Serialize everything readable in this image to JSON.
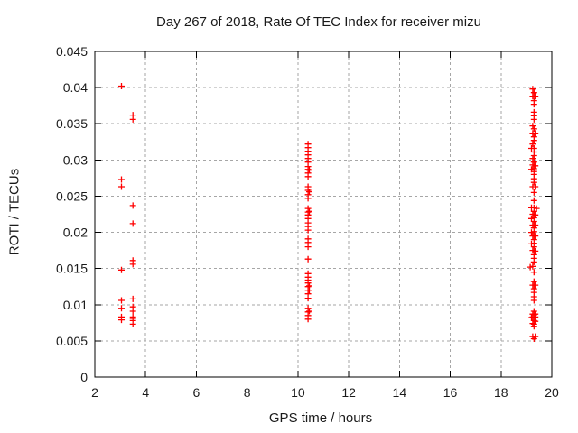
{
  "colors": {
    "marker": "#ff0000",
    "grid": "#a6a6a6",
    "axis": "#000000",
    "text": "#1a1a1a",
    "background": "#ffffff"
  },
  "chart_data": {
    "type": "scatter",
    "title": "Day 267 of 2018, Rate Of TEC Index for receiver mizu",
    "xlabel": "GPS time / hours",
    "ylabel": "ROTI / TECUs",
    "xlim": [
      2,
      20
    ],
    "ylim": [
      0,
      0.045
    ],
    "xticks": [
      2,
      4,
      6,
      8,
      10,
      12,
      14,
      16,
      18,
      20
    ],
    "xtick_labels": [
      "2",
      "4",
      "6",
      "8",
      "10",
      "12",
      "14",
      "16",
      "18",
      "20"
    ],
    "yticks": [
      0,
      0.005,
      0.01,
      0.015,
      0.02,
      0.025,
      0.03,
      0.035,
      0.04,
      0.045
    ],
    "ytick_labels": [
      "0",
      "0.005",
      "0.01",
      "0.015",
      "0.02",
      "0.025",
      "0.03",
      "0.035",
      "0.04",
      "0.045"
    ],
    "grid": true,
    "legend_position": "none",
    "marker": {
      "shape": "plus",
      "size": 7
    },
    "series": [
      {
        "name": "ROTI",
        "points": [
          [
            3.05,
            0.0402
          ],
          [
            3.05,
            0.0273
          ],
          [
            3.05,
            0.0263
          ],
          [
            3.05,
            0.0148
          ],
          [
            3.05,
            0.0106
          ],
          [
            3.05,
            0.0095
          ],
          [
            3.05,
            0.0083
          ],
          [
            3.05,
            0.0079
          ],
          [
            3.5,
            0.0362
          ],
          [
            3.5,
            0.0356
          ],
          [
            3.5,
            0.0237
          ],
          [
            3.5,
            0.0212
          ],
          [
            3.5,
            0.0161
          ],
          [
            3.5,
            0.0156
          ],
          [
            3.5,
            0.0108
          ],
          [
            3.5,
            0.0097
          ],
          [
            3.5,
            0.0091
          ],
          [
            3.5,
            0.0083
          ],
          [
            3.5,
            0.0081
          ],
          [
            3.5,
            0.0078
          ],
          [
            3.5,
            0.0073
          ],
          [
            10.4,
            0.0322
          ],
          [
            10.4,
            0.0317
          ],
          [
            10.4,
            0.0312
          ],
          [
            10.4,
            0.0307
          ],
          [
            10.4,
            0.0302
          ],
          [
            10.4,
            0.0297
          ],
          [
            10.4,
            0.0291
          ],
          [
            10.4,
            0.0287
          ],
          [
            10.45,
            0.0286
          ],
          [
            10.4,
            0.0282
          ],
          [
            10.4,
            0.0277
          ],
          [
            10.4,
            0.0263
          ],
          [
            10.4,
            0.0258
          ],
          [
            10.45,
            0.0256
          ],
          [
            10.4,
            0.0252
          ],
          [
            10.4,
            0.0247
          ],
          [
            10.4,
            0.0233
          ],
          [
            10.45,
            0.0229
          ],
          [
            10.4,
            0.0228
          ],
          [
            10.4,
            0.0224
          ],
          [
            10.4,
            0.0219
          ],
          [
            10.4,
            0.0213
          ],
          [
            10.4,
            0.0208
          ],
          [
            10.4,
            0.0203
          ],
          [
            10.4,
            0.0191
          ],
          [
            10.4,
            0.0186
          ],
          [
            10.4,
            0.018
          ],
          [
            10.4,
            0.0163
          ],
          [
            10.4,
            0.0143
          ],
          [
            10.4,
            0.0138
          ],
          [
            10.4,
            0.0134
          ],
          [
            10.4,
            0.013
          ],
          [
            10.45,
            0.0126
          ],
          [
            10.4,
            0.0125
          ],
          [
            10.4,
            0.012
          ],
          [
            10.45,
            0.012
          ],
          [
            10.4,
            0.0115
          ],
          [
            10.4,
            0.0109
          ],
          [
            10.4,
            0.0095
          ],
          [
            10.45,
            0.0091
          ],
          [
            10.4,
            0.009
          ],
          [
            10.4,
            0.0085
          ],
          [
            10.4,
            0.008
          ],
          [
            19.25,
            0.0398
          ],
          [
            19.3,
            0.0393
          ],
          [
            19.25,
            0.0388
          ],
          [
            19.35,
            0.0388
          ],
          [
            19.3,
            0.0382
          ],
          [
            19.3,
            0.0377
          ],
          [
            19.3,
            0.0366
          ],
          [
            19.3,
            0.0361
          ],
          [
            19.3,
            0.0356
          ],
          [
            19.25,
            0.0347
          ],
          [
            19.3,
            0.0343
          ],
          [
            19.25,
            0.0337
          ],
          [
            19.35,
            0.0337
          ],
          [
            19.3,
            0.0332
          ],
          [
            19.3,
            0.0327
          ],
          [
            19.25,
            0.0322
          ],
          [
            19.3,
            0.0316
          ],
          [
            19.2,
            0.0316
          ],
          [
            19.3,
            0.0311
          ],
          [
            19.3,
            0.0306
          ],
          [
            19.25,
            0.0302
          ],
          [
            19.3,
            0.0297
          ],
          [
            19.25,
            0.0293
          ],
          [
            19.35,
            0.0292
          ],
          [
            19.3,
            0.0288
          ],
          [
            19.2,
            0.0287
          ],
          [
            19.3,
            0.0284
          ],
          [
            19.3,
            0.028
          ],
          [
            19.3,
            0.0274
          ],
          [
            19.3,
            0.0269
          ],
          [
            19.25,
            0.0263
          ],
          [
            19.35,
            0.0263
          ],
          [
            19.3,
            0.0255
          ],
          [
            19.3,
            0.0244
          ],
          [
            19.2,
            0.0234
          ],
          [
            19.3,
            0.0234
          ],
          [
            19.4,
            0.0233
          ],
          [
            19.3,
            0.0229
          ],
          [
            19.25,
            0.0225
          ],
          [
            19.35,
            0.0224
          ],
          [
            19.3,
            0.022
          ],
          [
            19.2,
            0.0219
          ],
          [
            19.3,
            0.0215
          ],
          [
            19.25,
            0.021
          ],
          [
            19.35,
            0.021
          ],
          [
            19.3,
            0.0206
          ],
          [
            19.3,
            0.0201
          ],
          [
            19.2,
            0.02
          ],
          [
            19.25,
            0.0195
          ],
          [
            19.35,
            0.0195
          ],
          [
            19.3,
            0.019
          ],
          [
            19.3,
            0.0185
          ],
          [
            19.2,
            0.0184
          ],
          [
            19.3,
            0.018
          ],
          [
            19.25,
            0.0175
          ],
          [
            19.35,
            0.0174
          ],
          [
            19.3,
            0.0169
          ],
          [
            19.3,
            0.0164
          ],
          [
            19.3,
            0.0159
          ],
          [
            19.25,
            0.0153
          ],
          [
            19.15,
            0.0152
          ],
          [
            19.3,
            0.0145
          ],
          [
            19.3,
            0.0132
          ],
          [
            19.25,
            0.0127
          ],
          [
            19.35,
            0.0127
          ],
          [
            19.3,
            0.0122
          ],
          [
            19.3,
            0.0117
          ],
          [
            19.3,
            0.0111
          ],
          [
            19.3,
            0.0106
          ],
          [
            19.3,
            0.0091
          ],
          [
            19.25,
            0.0087
          ],
          [
            19.35,
            0.0087
          ],
          [
            19.3,
            0.0086
          ],
          [
            19.25,
            0.0083
          ],
          [
            19.35,
            0.0083
          ],
          [
            19.2,
            0.0082
          ],
          [
            19.3,
            0.0078
          ],
          [
            19.35,
            0.0077
          ],
          [
            19.25,
            0.0074
          ],
          [
            19.3,
            0.0073
          ],
          [
            19.3,
            0.007
          ],
          [
            19.25,
            0.0056
          ],
          [
            19.35,
            0.0056
          ],
          [
            19.3,
            0.0053
          ]
        ]
      }
    ]
  }
}
